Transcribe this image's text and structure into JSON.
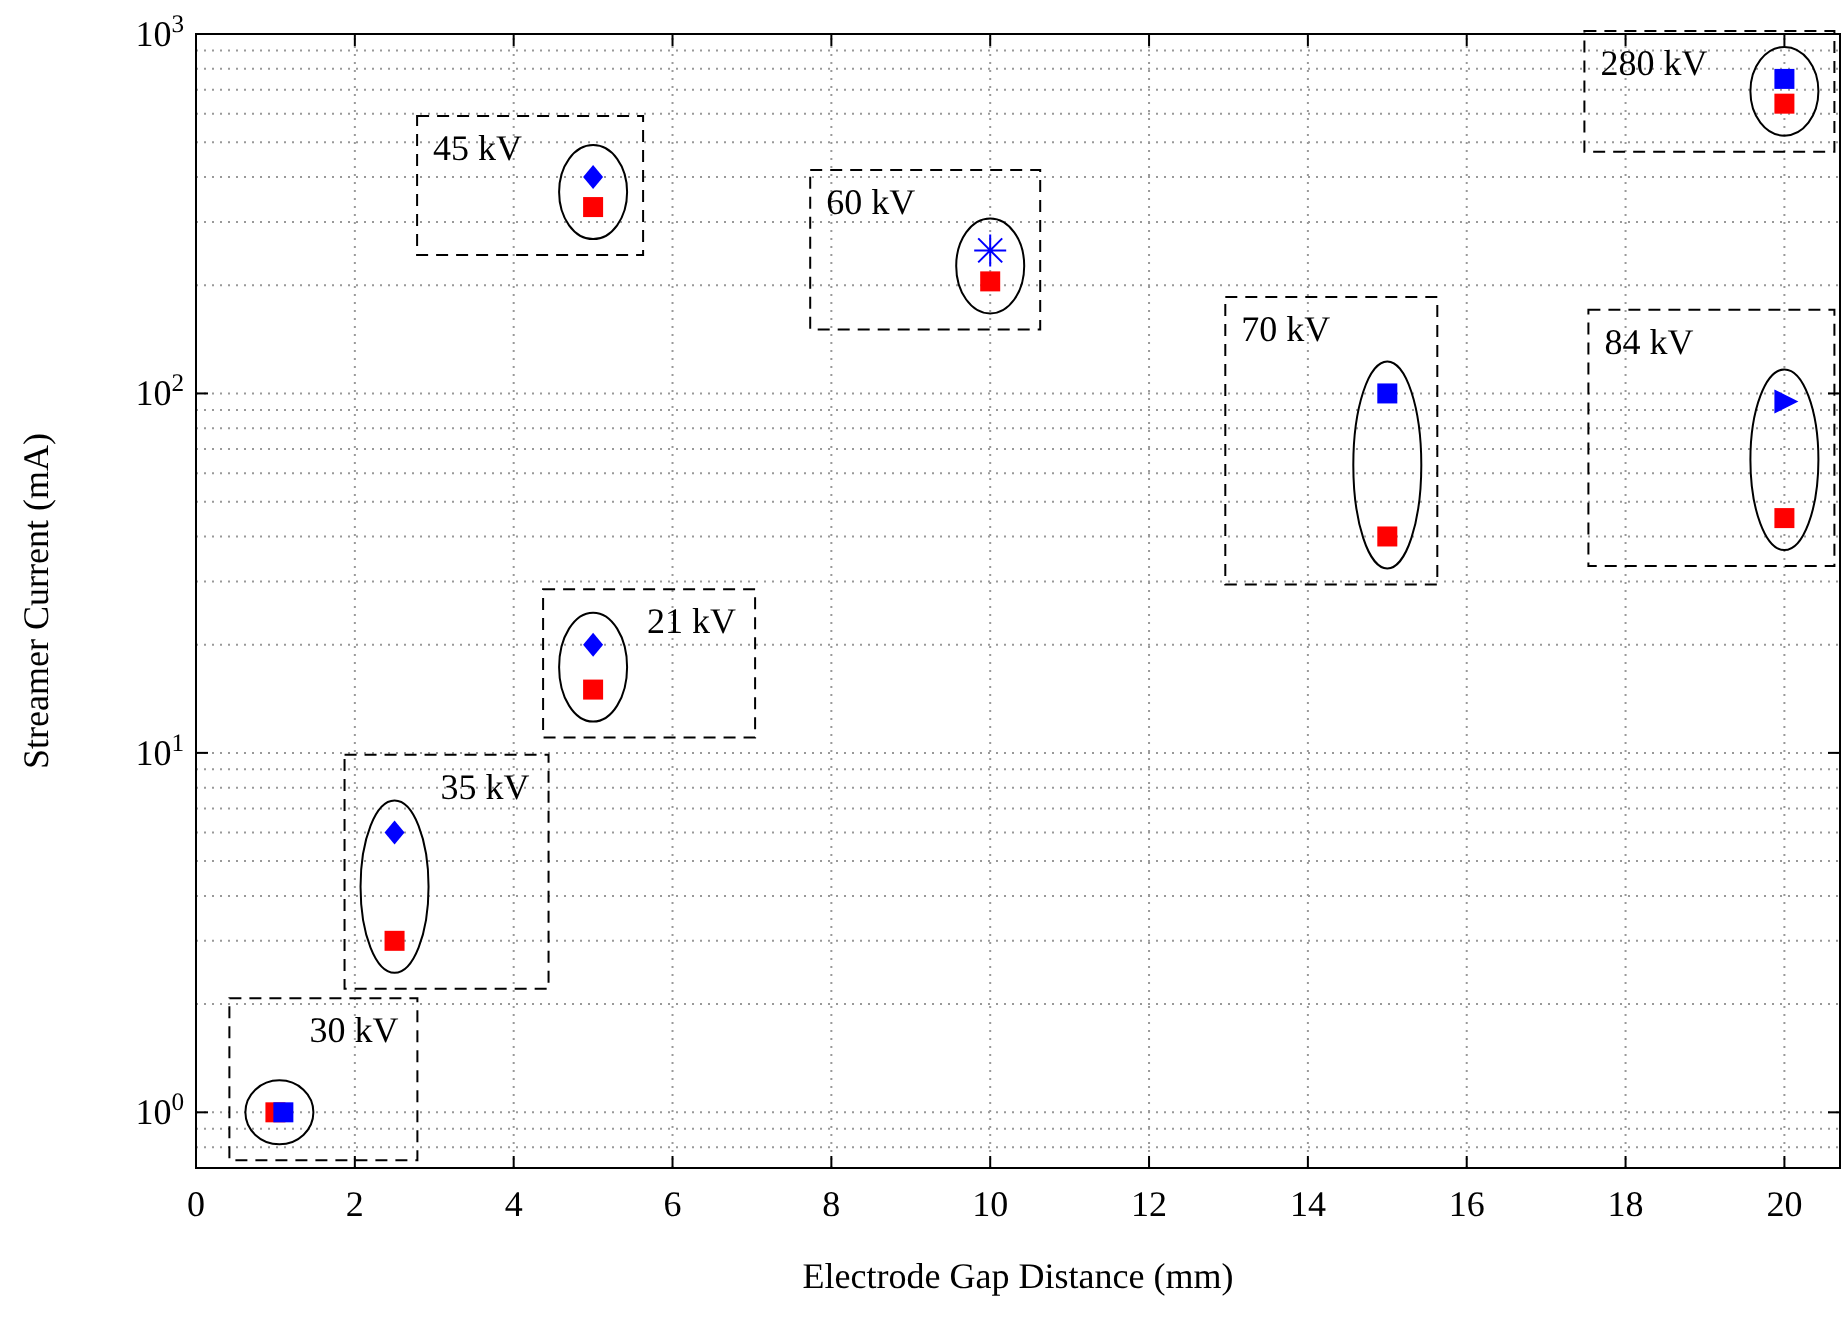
{
  "chart_data": {
    "type": "scatter",
    "xlabel": "Electrode Gap Distance (mm)",
    "ylabel": "Streamer Current (mA)",
    "log": "y",
    "grid": true,
    "xlim": [
      0,
      20.7
    ],
    "xticks": [
      0,
      2,
      4,
      6,
      8,
      10,
      12,
      14,
      16,
      18,
      20
    ],
    "ylim": [
      0.7,
      1000
    ],
    "yticks": [
      {
        "value": 1,
        "label": "10$^{0}$"
      },
      {
        "value": 10,
        "label": "10$^{1}$"
      },
      {
        "value": 100,
        "label": "10$^{2}$"
      },
      {
        "value": 1000,
        "label": "10$^{3}$"
      }
    ],
    "series": [
      {
        "color": "#ff0000",
        "marker": "square",
        "x": [
          1,
          2.5,
          5,
          5,
          10,
          15,
          20,
          20
        ],
        "values": [
          1,
          3,
          15,
          330,
          205,
          40,
          45,
          640
        ]
      },
      {
        "color": "#0000ff",
        "marker": "square",
        "x": [
          1.1,
          15,
          20
        ],
        "values": [
          1,
          100,
          750
        ]
      },
      {
        "color": "#0000ff",
        "marker": "diamond",
        "x": [
          2.5,
          5,
          5
        ],
        "values": [
          6,
          20,
          400
        ]
      },
      {
        "color": "#0000ff",
        "marker": "cross",
        "x": [
          10
        ],
        "values": [
          250
        ]
      },
      {
        "color": "#0000ff",
        "marker": "triangle",
        "x": [
          20
        ],
        "values": [
          95
        ]
      }
    ],
    "annotations": [
      "30 kV",
      "35 kV",
      "21 kV",
      "45 kV",
      "60 kV",
      "70 kV",
      "84 kV",
      "280 kV"
    ]
  }
}
